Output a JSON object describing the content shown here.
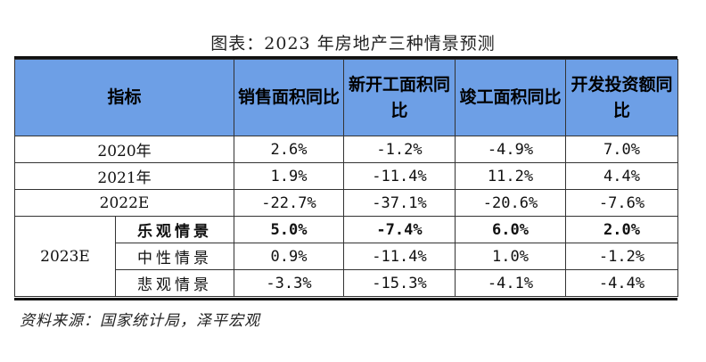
{
  "title": "图表：2023 年房地产三种情景预测",
  "headers": {
    "indicator": "指标",
    "sales": "销售面积同比",
    "new_starts": "新开工面积同比",
    "completions": "竣工面积同比",
    "investment": "开发投资额同比"
  },
  "rows": [
    {
      "label": "2020年",
      "values": [
        "2.6%",
        "-1.2%",
        "-4.9%",
        "7.0%"
      ]
    },
    {
      "label": "2021年",
      "values": [
        "1.9%",
        "-11.4%",
        "11.2%",
        "4.4%"
      ]
    },
    {
      "label": "2022E",
      "values": [
        "-22.7%",
        "-37.1%",
        "-20.6%",
        "-7.6%"
      ]
    }
  ],
  "forecast": {
    "year": "2023E",
    "scenarios": [
      {
        "label": "乐观情景",
        "values": [
          "5.0%",
          "-7.4%",
          "6.0%",
          "2.0%"
        ]
      },
      {
        "label": "中性情景",
        "values": [
          "0.9%",
          "-11.4%",
          "1.0%",
          "-1.2%"
        ]
      },
      {
        "label": "悲观情景",
        "values": [
          "-3.3%",
          "-15.3%",
          "-4.1%",
          "-4.4%"
        ]
      }
    ]
  },
  "source": "资料来源：国家统计局，泽平宏观"
}
